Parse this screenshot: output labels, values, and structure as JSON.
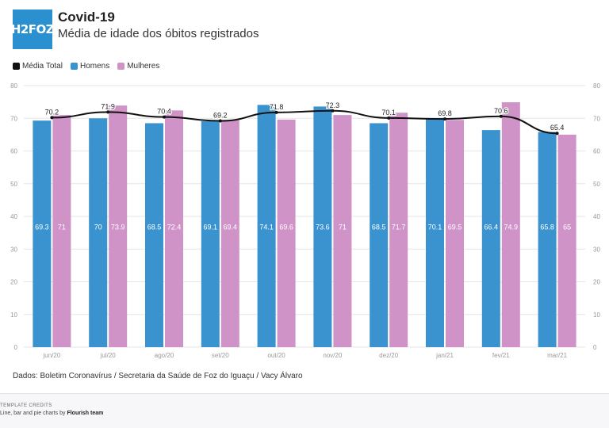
{
  "header": {
    "logo_text": "H2FOZ",
    "title": "Covid-19",
    "subtitle": "Média de idade dos óbitos registrados"
  },
  "legend": [
    {
      "label": "Média Total",
      "color": "#111111"
    },
    {
      "label": "Homens",
      "color": "#3a93cf"
    },
    {
      "label": "Mulheres",
      "color": "#cf93c7"
    }
  ],
  "source": "Dados: Boletim Coronavírus / Secretaria da Saúde de Foz do Iguaçu / Vacy Álvaro",
  "footer": {
    "credits_title": "TEMPLATE CREDITS",
    "credits_prefix": "Line, bar and pie charts by",
    "credits_author": "Flourish team"
  },
  "chart_data": {
    "type": "bar",
    "categories": [
      "jun/20",
      "jul/20",
      "ago/20",
      "set/20",
      "out/20",
      "nov/20",
      "dez/20",
      "jan/21",
      "fev/21",
      "mar/21"
    ],
    "series": [
      {
        "name": "Homens",
        "type": "bar",
        "color": "#3a93cf",
        "values": [
          69.3,
          70,
          68.5,
          69.1,
          74.1,
          73.6,
          68.5,
          70.1,
          66.4,
          65.8
        ]
      },
      {
        "name": "Mulheres",
        "type": "bar",
        "color": "#cf93c7",
        "values": [
          71,
          73.9,
          72.4,
          69.4,
          69.6,
          71,
          71.7,
          69.5,
          74.9,
          65
        ]
      },
      {
        "name": "Média Total",
        "type": "line",
        "color": "#111111",
        "values": [
          70.2,
          71.9,
          70.4,
          69.2,
          71.8,
          72.3,
          70.1,
          69.8,
          70.6,
          65.4
        ]
      }
    ],
    "ylim": [
      0,
      80
    ],
    "yticks": [
      0,
      10,
      20,
      30,
      40,
      50,
      60,
      70,
      80
    ],
    "grid": true,
    "legend_position": "top-left"
  }
}
